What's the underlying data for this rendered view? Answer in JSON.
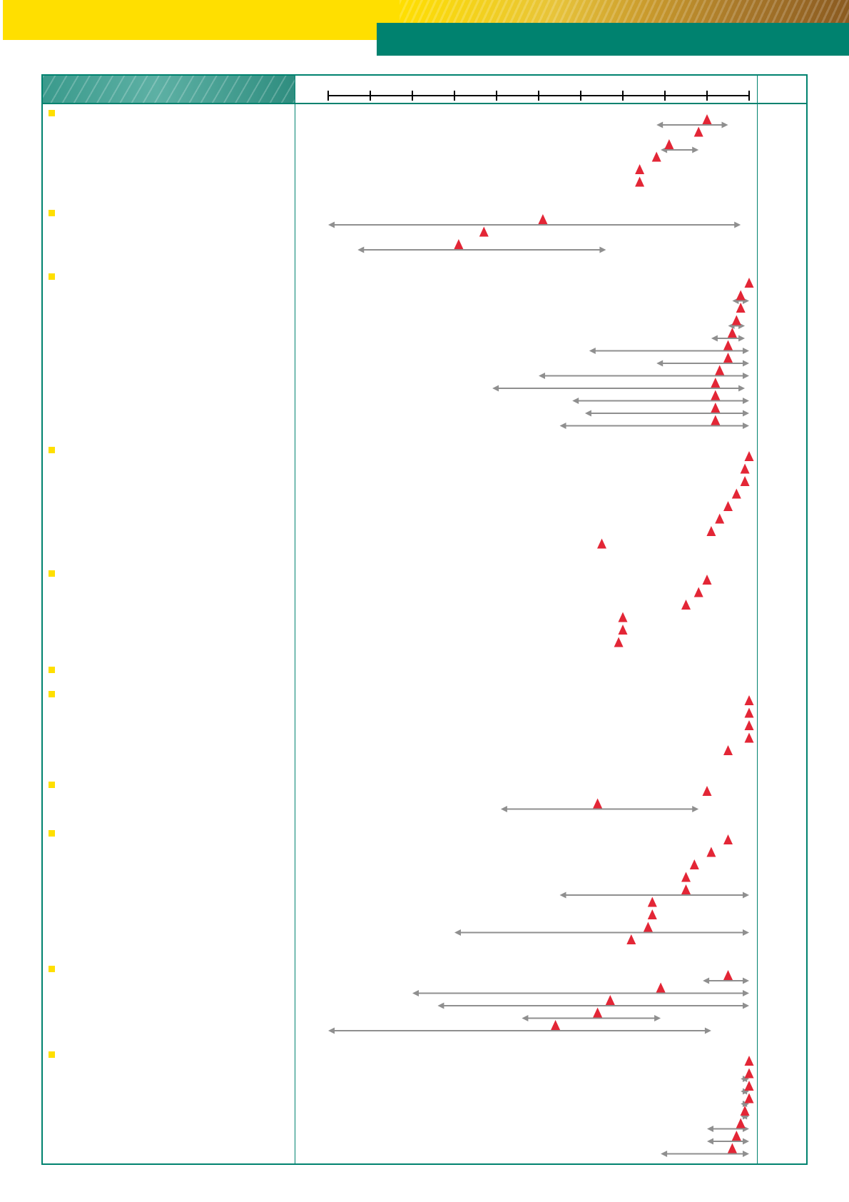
{
  "colors": {
    "brand_yellow": "#ffdf00",
    "brand_teal": "#00826f",
    "marker": "#e32636",
    "range_arrow": "#8f8f8f",
    "axis": "#000000"
  },
  "chart_data": {
    "type": "scatter",
    "title": "",
    "xlabel": "",
    "ylabel": "",
    "x_ticks_count": 11,
    "xlim": [
      0,
      10
    ],
    "grid": false,
    "legend": "none",
    "marker": "red-triangle",
    "range": "grey-double-arrow",
    "groups": [
      {
        "rows": [
          {
            "value": 9.0,
            "low": 7.8,
            "high": 9.5
          },
          {
            "value": 8.8
          },
          {
            "value": 8.1,
            "low": 7.9,
            "high": 8.8
          },
          {
            "value": 7.8
          },
          {
            "value": 7.4
          },
          {
            "value": 7.4
          }
        ]
      },
      {
        "rows": [
          {
            "value": 5.1,
            "low": 0.0,
            "high": 9.8
          },
          {
            "value": 3.7
          },
          {
            "value": 3.1,
            "low": 0.7,
            "high": 6.6
          }
        ]
      },
      {
        "rows": [
          {
            "value": 10.0
          },
          {
            "value": 9.8,
            "low": 9.6,
            "high": 10.0
          },
          {
            "value": 9.8
          },
          {
            "value": 9.7,
            "low": 9.5,
            "high": 9.9
          },
          {
            "value": 9.6,
            "low": 9.1,
            "high": 9.9
          },
          {
            "value": 9.5,
            "low": 6.2,
            "high": 10.0
          },
          {
            "value": 9.5,
            "low": 7.8,
            "high": 10.0
          },
          {
            "value": 9.3,
            "low": 5.0,
            "high": 10.0
          },
          {
            "value": 9.2,
            "low": 3.9,
            "high": 9.9
          },
          {
            "value": 9.2,
            "low": 5.8,
            "high": 10.0
          },
          {
            "value": 9.2,
            "low": 6.1,
            "high": 10.0
          },
          {
            "value": 9.2,
            "low": 5.5,
            "high": 10.0
          }
        ]
      },
      {
        "rows": [
          {
            "value": 10.0
          },
          {
            "value": 9.9
          },
          {
            "value": 9.9
          },
          {
            "value": 9.7
          },
          {
            "value": 9.5
          },
          {
            "value": 9.3
          },
          {
            "value": 9.1
          },
          {
            "value": 6.5
          }
        ]
      },
      {
        "rows": [
          {
            "value": 9.0
          },
          {
            "value": 8.8
          },
          {
            "value": 8.5
          },
          {
            "value": 7.0
          },
          {
            "value": 7.0
          },
          {
            "value": 6.9
          }
        ]
      },
      {
        "rows": []
      },
      {
        "rows": [
          {
            "value": 10.0
          },
          {
            "value": 10.0
          },
          {
            "value": 10.0
          },
          {
            "value": 10.0
          },
          {
            "value": 9.5
          }
        ]
      },
      {
        "rows": [
          {
            "value": 9.0
          },
          {
            "value": 6.4,
            "low": 4.1,
            "high": 8.8
          }
        ]
      },
      {
        "rows": [
          {
            "value": 9.5
          },
          {
            "value": 9.1
          },
          {
            "value": 8.7
          },
          {
            "value": 8.5
          },
          {
            "value": 8.5,
            "low": 5.5,
            "high": 10.0
          },
          {
            "value": 7.7
          },
          {
            "value": 7.7
          },
          {
            "value": 7.6,
            "low": 3.0,
            "high": 10.0
          },
          {
            "value": 7.2
          }
        ]
      },
      {
        "rows": [
          {
            "value": 9.5,
            "low": 8.9,
            "high": 10.0
          },
          {
            "value": 7.9,
            "low": 2.0,
            "high": 10.0
          },
          {
            "value": 6.7,
            "low": 2.6,
            "high": 10.0
          },
          {
            "value": 6.4,
            "low": 4.6,
            "high": 7.9
          },
          {
            "value": 5.4,
            "low": 0.0,
            "high": 9.1
          }
        ]
      },
      {
        "rows": [
          {
            "value": 10.0
          },
          {
            "value": 10.0,
            "low": 9.8,
            "high": 10.0
          },
          {
            "value": 10.0,
            "low": 9.8,
            "high": 10.0
          },
          {
            "value": 10.0,
            "low": 9.8,
            "high": 10.0
          },
          {
            "value": 9.9,
            "low": 9.8,
            "high": 10.0
          },
          {
            "value": 9.8,
            "low": 9.0,
            "high": 10.0
          },
          {
            "value": 9.7,
            "low": 9.0,
            "high": 10.0
          },
          {
            "value": 9.6,
            "low": 7.9,
            "high": 10.0
          }
        ]
      }
    ]
  }
}
